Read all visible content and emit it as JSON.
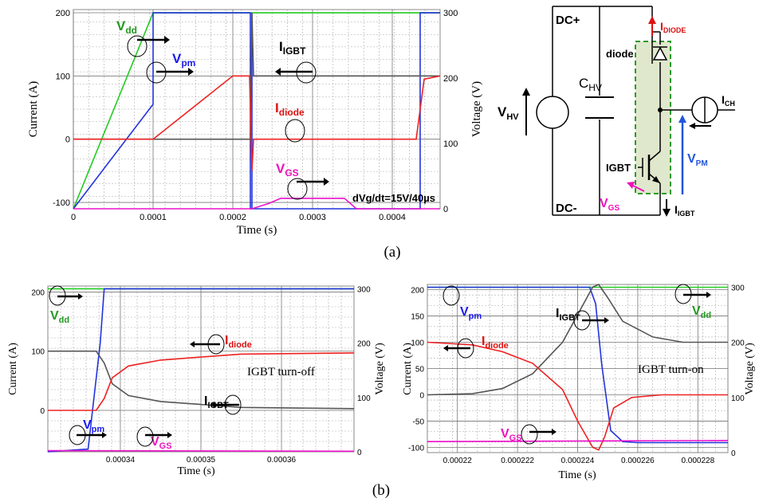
{
  "colors": {
    "green": "#22cc22",
    "blue": "#2233dd",
    "gray": "#555555",
    "red": "#ee2222",
    "magenta": "#ee11cc",
    "grid": "#aaaaaa",
    "labelGreen": "#229922",
    "labelRed": "#dd1111",
    "labelBlue": "#1a1aee",
    "labelMagenta": "#ee11bb",
    "box": "#8fb060",
    "boxFill": "#dfe8cc"
  },
  "caption_a": "(a)",
  "caption_b": "(b)",
  "chart_data": [
    {
      "type": "line",
      "xlabel": "Time (s)",
      "ylabel_left": "Current (A)",
      "ylabel_right": "Voltage (V)",
      "xlim": [
        0,
        0.00046
      ],
      "ylim_left": [
        -110,
        205
      ],
      "ylim_right": [
        0,
        305
      ],
      "x_ticks": [
        "0",
        "0.0001",
        "0.0002",
        "0.0003",
        "0.0004"
      ],
      "y_ticks_left": [
        "-100",
        "0",
        "100",
        "200"
      ],
      "y_ticks_right": [
        "0",
        "100",
        "200",
        "300"
      ],
      "annotation": "dVg/dt=15V/40µs",
      "series": [
        {
          "name": "Vdd",
          "color": "green",
          "axis": "right",
          "x": [
            0,
            0.0001,
            0.00046
          ],
          "y": [
            0,
            300,
            300
          ]
        },
        {
          "name": "Vpm",
          "color": "blue",
          "axis": "right",
          "x": [
            0,
            0.0001,
            0.0001,
            0.000222,
            0.000222,
            0.000224,
            0.000224,
            0.000224,
            0.000435,
            0.000435,
            0.00046
          ],
          "y": [
            0,
            160,
            300,
            300,
            0,
            0,
            300,
            0,
            0,
            300,
            300
          ]
        },
        {
          "name": "IGBT",
          "color": "gray",
          "axis": "left",
          "x": [
            0,
            0.000222,
            0.000224,
            0.000226,
            0.00023,
            0.00046
          ],
          "y": [
            0,
            0,
            200,
            100,
            100,
            100
          ]
        },
        {
          "name": "diode",
          "color": "red",
          "axis": "left",
          "x": [
            0,
            0.0001,
            0.0002,
            0.000221,
            0.000224,
            0.000226,
            0.00043,
            0.00044,
            0.00046
          ],
          "y": [
            0,
            0,
            100,
            100,
            -50,
            0,
            0,
            95,
            100
          ]
        },
        {
          "name": "VGS",
          "color": "magenta",
          "axis": "right",
          "x": [
            0,
            0.000224,
            0.000245,
            0.00026,
            0.00034,
            0.000355,
            0.00046
          ],
          "y": [
            0,
            0,
            8,
            16,
            16,
            0,
            0
          ]
        }
      ],
      "labels": {
        "vdd": "V",
        "vdd_sub": "dd",
        "vpm": "V",
        "vpm_sub": "pm",
        "igbt": "I",
        "igbt_sub": "IGBT",
        "diode": "I",
        "diode_sub": "diode",
        "vgs": "V",
        "vgs_sub": "GS"
      }
    },
    {
      "type": "line",
      "title": "IGBT turn-off",
      "xlabel": "Time (s)",
      "ylabel_left": "Current (A)",
      "ylabel_right": "Voltage (V)",
      "xlim": [
        0.000331,
        0.000369
      ],
      "ylim_left": [
        -70,
        210
      ],
      "ylim_right": [
        0,
        305
      ],
      "x_ticks": [
        "0.00034",
        "0.00035",
        "0.00036"
      ],
      "x_tick_vals": [
        0.00034,
        0.00035,
        0.00036
      ],
      "y_ticks_left": [
        "0",
        "100",
        "200"
      ],
      "y_ticks_right": [
        "0",
        "100",
        "200",
        "300"
      ],
      "series": [
        {
          "name": "Vdd",
          "color": "green",
          "axis": "right",
          "x": [
            0.000331,
            0.000369
          ],
          "y": [
            300,
            300
          ]
        },
        {
          "name": "Vpm",
          "color": "blue",
          "axis": "right",
          "x": [
            0.000331,
            0.000336,
            0.0003375,
            0.000338,
            0.000369
          ],
          "y": [
            0,
            5,
            200,
            300,
            300
          ]
        },
        {
          "name": "IGBT",
          "color": "gray",
          "axis": "left",
          "x": [
            0.000331,
            0.000337,
            0.000338,
            0.000339,
            0.000341,
            0.000345,
            0.00035,
            0.000355,
            0.000369
          ],
          "y": [
            100,
            100,
            80,
            45,
            25,
            15,
            10,
            5,
            3
          ]
        },
        {
          "name": "diode",
          "color": "red",
          "axis": "left",
          "x": [
            0.000331,
            0.000337,
            0.000338,
            0.000339,
            0.000341,
            0.000345,
            0.00035,
            0.000355,
            0.000369
          ],
          "y": [
            0,
            0,
            20,
            55,
            75,
            85,
            90,
            95,
            97
          ]
        },
        {
          "name": "VGS",
          "color": "magenta",
          "axis": "right",
          "x": [
            0.000331,
            0.000369
          ],
          "y": [
            2,
            1
          ]
        }
      ],
      "labels": {
        "vdd": "V",
        "vdd_sub": "dd",
        "vpm": "V",
        "vpm_sub": "pm",
        "igbt": "I",
        "igbt_sub": "IGBT",
        "diode": "I",
        "diode_sub": "diode",
        "vgs": "V",
        "vgs_sub": "GS"
      }
    },
    {
      "type": "line",
      "title": "IGBT turn-on",
      "xlabel": "Time (s)",
      "ylabel_left": "Current (A)",
      "ylabel_right": "Voltage (V)",
      "xlim": [
        0,
        1
      ],
      "ylim_left": [
        -110,
        210
      ],
      "ylim_right": [
        0,
        305
      ],
      "x_ticks": [
        "0.00022",
        "0.000222",
        "0.000224",
        "0.000226",
        "0.000228"
      ],
      "x_tick_vals": [
        0.1,
        0.3,
        0.5,
        0.7,
        0.9
      ],
      "y_ticks_left": [
        "-100",
        "-50",
        "0",
        "50",
        "100",
        "150",
        "200"
      ],
      "y_ticks_right": [
        "0",
        "100",
        "200",
        "300"
      ],
      "series": [
        {
          "name": "Vdd",
          "color": "green",
          "axis": "right",
          "x": [
            0,
            1
          ],
          "y": [
            300,
            300
          ]
        },
        {
          "name": "Vpm",
          "color": "blue",
          "axis": "right",
          "x": [
            0,
            0.54,
            0.56,
            0.58,
            0.61,
            0.65,
            0.7,
            1
          ],
          "y": [
            300,
            300,
            270,
            160,
            40,
            20,
            18,
            18
          ]
        },
        {
          "name": "IGBT",
          "color": "gray",
          "axis": "left",
          "x": [
            0,
            0.15,
            0.25,
            0.35,
            0.45,
            0.55,
            0.57,
            0.6,
            0.65,
            0.75,
            0.85,
            1
          ],
          "y": [
            0,
            2,
            12,
            40,
            100,
            205,
            210,
            185,
            140,
            110,
            100,
            100
          ]
        },
        {
          "name": "diode",
          "color": "red",
          "axis": "left",
          "x": [
            0,
            0.15,
            0.25,
            0.35,
            0.45,
            0.5,
            0.55,
            0.57,
            0.59,
            0.62,
            0.68,
            0.78,
            1
          ],
          "y": [
            100,
            95,
            82,
            60,
            10,
            -50,
            -100,
            -105,
            -80,
            -25,
            -5,
            0,
            0
          ]
        },
        {
          "name": "VGS",
          "color": "magenta",
          "axis": "right",
          "x": [
            0,
            1
          ],
          "y": [
            20,
            22
          ]
        }
      ],
      "labels": {
        "vdd": "V",
        "vdd_sub": "dd",
        "vpm": "V",
        "vpm_sub": "pm",
        "igbt": "I",
        "igbt_sub": "IGBT",
        "diode": "I",
        "diode_sub": "diode",
        "vgs": "V",
        "vgs_sub": "GS"
      }
    }
  ],
  "circuit": {
    "dc_plus": "DC+",
    "dc_minus": "DC-",
    "v_hv": "V",
    "v_hv_sub": "HV",
    "c_hv": "C",
    "c_hv_sub": "HV",
    "i_diode": "I",
    "i_diode_sub": "DIODE",
    "diode": "diode",
    "i_ch": "I",
    "i_ch_sub": "CH",
    "v_pm": "V",
    "v_pm_sub": "PM",
    "igbt": "IGBT",
    "v_gs": "V",
    "v_gs_sub": "GS",
    "i_igbt": "I",
    "i_igbt_sub": "IGBT"
  }
}
